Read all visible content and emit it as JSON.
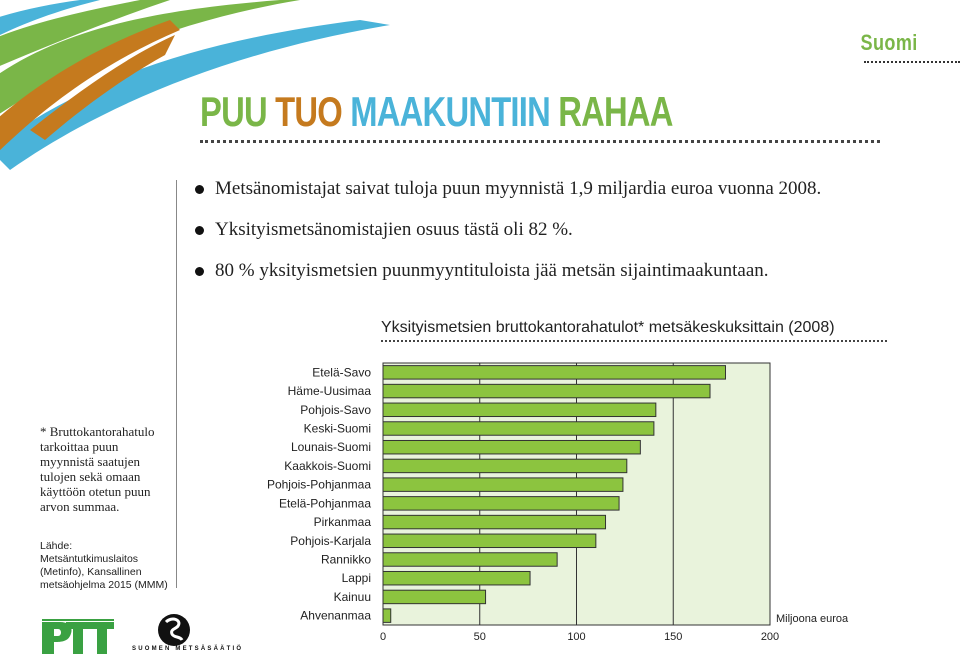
{
  "header": {
    "lang_label": "Suomi",
    "title_parts": [
      "PUU",
      "TUO",
      "MAAKUNTIIN",
      "RAHAA"
    ]
  },
  "bullets": [
    "Metsänomistajat saivat tuloja puun myynnistä 1,9 miljardia euroa vuonna 2008.",
    "Yksityismetsänomistajien osuus tästä oli 82 %.",
    "80 % yksityismetsien puunmyyntituloista jää metsän sijaintimaakuntaan."
  ],
  "footnote": "* Bruttokantorahatulo tarkoittaa puun myynnistä saatujen tulojen sekä omaan käyttöön otetun puun arvon summaa.",
  "source": "Lähde: Metsäntutkimuslaitos (Metinfo), Kansallinen metsäohjelma 2015 (MMM)",
  "logos": {
    "ptt": "PTT",
    "sms": "SUOMEN METSÄSÄÄTIÖ"
  },
  "colors": {
    "bar": "#8cc43f",
    "plot_bg": "#e9f3dc",
    "green": "#7ab648",
    "orange": "#c57a1e",
    "blue": "#4ab3d9"
  },
  "chart_data": {
    "type": "bar",
    "orientation": "horizontal",
    "title": "Yksityismetsien bruttokantorahatulot* metsäkeskuksittain (2008)",
    "xlabel": "Miljoona euroa",
    "xlim": [
      0,
      200
    ],
    "xticks": [
      0,
      50,
      100,
      150,
      200
    ],
    "grid": true,
    "categories": [
      "Etelä-Savo",
      "Häme-Uusimaa",
      "Pohjois-Savo",
      "Keski-Suomi",
      "Lounais-Suomi",
      "Kaakkois-Suomi",
      "Pohjois-Pohjanmaa",
      "Etelä-Pohjanmaa",
      "Pirkanmaa",
      "Pohjois-Karjala",
      "Rannikko",
      "Lappi",
      "Kainuu",
      "Ahvenanmaa"
    ],
    "values": [
      177,
      169,
      141,
      140,
      133,
      126,
      124,
      122,
      115,
      110,
      90,
      76,
      53,
      4
    ]
  }
}
